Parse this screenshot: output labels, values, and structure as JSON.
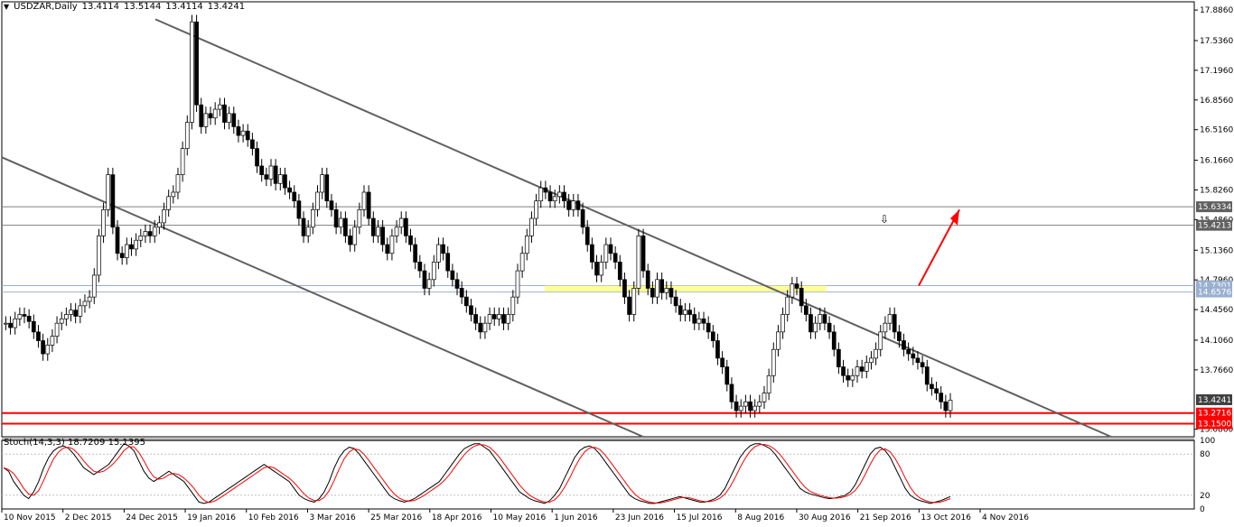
{
  "header": {
    "symbol": "USDZAR,Daily",
    "open": "13.4114",
    "high": "13.5144",
    "low": "13.4114",
    "close": "13.4241"
  },
  "stoch": {
    "label": "Stoch(14,3,3)",
    "main": "18.7209",
    "signal": "15.1395",
    "levels": [
      "100",
      "80",
      "20",
      "0"
    ]
  },
  "chart_data": {
    "type": "candlestick",
    "y_axis_ticks": [
      "17.8860",
      "17.5360",
      "17.1960",
      "16.8560",
      "16.5160",
      "16.1660",
      "15.8260",
      "15.4860",
      "15.1360",
      "14.7960",
      "14.4560",
      "14.1060",
      "13.7660",
      "13.4241",
      "13.0860"
    ],
    "ylim": [
      13.0,
      17.98
    ],
    "x_axis_ticks": [
      "10 Nov 2015",
      "2 Dec 2015",
      "24 Dec 2015",
      "19 Jan 2016",
      "10 Feb 2016",
      "3 Mar 2016",
      "25 Mar 2016",
      "18 Apr 2016",
      "10 May 2016",
      "1 Jun 2016",
      "23 Jun 2016",
      "15 Jul 2016",
      "8 Aug 2016",
      "30 Aug 2016",
      "21 Sep 2016",
      "13 Oct 2016",
      "4 Nov 2016"
    ],
    "horizontal_lines": [
      {
        "label": "15.6334",
        "value": 15.6334,
        "color": "#808080"
      },
      {
        "label": "15.4213",
        "value": 15.4213,
        "color": "#808080"
      },
      {
        "label": "14.7301",
        "value": 14.7301,
        "color": "#9ab0d0"
      },
      {
        "label": "14.6576",
        "value": 14.6576,
        "color": "#9ab0d0"
      },
      {
        "label": "13.2716",
        "value": 13.2716,
        "color": "#ff0000"
      },
      {
        "label": "13.1500",
        "value": 13.15,
        "color": "#ff0000"
      }
    ],
    "current_price": "13.4241",
    "series": [
      {
        "values": [
          14.3,
          14.25,
          14.35,
          14.4,
          14.38,
          14.32,
          14.2,
          14.1,
          13.95,
          14.05,
          14.15,
          14.3,
          14.35,
          14.4,
          14.45,
          14.38,
          14.5,
          14.55,
          14.6,
          14.85,
          15.3,
          15.6,
          16.0,
          15.4,
          15.1,
          15.05,
          15.2,
          15.15,
          15.25,
          15.3,
          15.35,
          15.3,
          15.4,
          15.45,
          15.6,
          15.75,
          15.8,
          16.0,
          16.3,
          16.6,
          17.75,
          16.8,
          16.55,
          16.7,
          16.65,
          16.75,
          16.8,
          16.6,
          16.7,
          16.55,
          16.45,
          16.5,
          16.4,
          16.3,
          16.1,
          16.0,
          15.95,
          16.1,
          15.9,
          16.0,
          15.85,
          15.8,
          15.7,
          15.5,
          15.3,
          15.4,
          15.6,
          15.8,
          16.0,
          15.7,
          15.6,
          15.4,
          15.5,
          15.3,
          15.2,
          15.4,
          15.6,
          15.8,
          15.5,
          15.3,
          15.4,
          15.2,
          15.1,
          15.3,
          15.4,
          15.5,
          15.3,
          15.2,
          15.0,
          14.9,
          14.7,
          14.8,
          15.0,
          15.2,
          15.1,
          14.9,
          14.8,
          14.7,
          14.6,
          14.5,
          14.4,
          14.3,
          14.2,
          14.3,
          14.4,
          14.35,
          14.4,
          14.3,
          14.4,
          14.6,
          14.9,
          15.1,
          15.3,
          15.5,
          15.7,
          15.85,
          15.8,
          15.7,
          15.75,
          15.8,
          15.7,
          15.6,
          15.7,
          15.6,
          15.4,
          15.2,
          15.0,
          14.85,
          15.0,
          15.2,
          15.1,
          15.0,
          14.8,
          14.6,
          14.4,
          14.7,
          15.3,
          14.9,
          14.7,
          14.6,
          14.8,
          14.65,
          14.7,
          14.6,
          14.5,
          14.4,
          14.45,
          14.4,
          14.3,
          14.35,
          14.3,
          14.2,
          14.1,
          13.9,
          13.8,
          13.6,
          13.4,
          13.3,
          13.35,
          13.4,
          13.3,
          13.35,
          13.4,
          13.5,
          13.7,
          14.0,
          14.2,
          14.4,
          14.6,
          14.75,
          14.7,
          14.5,
          14.4,
          14.2,
          14.3,
          14.4,
          14.3,
          14.2,
          14.0,
          13.8,
          13.7,
          13.65,
          13.7,
          13.8,
          13.75,
          13.85,
          13.9,
          14.0,
          14.2,
          14.3,
          14.4,
          14.2,
          14.1,
          14.0,
          13.95,
          13.9,
          13.85,
          13.8,
          13.6,
          13.55,
          13.5,
          13.4,
          13.3,
          13.42
        ]
      }
    ],
    "stoch_k": [
      60,
      55,
      40,
      30,
      20,
      15,
      25,
      40,
      60,
      75,
      85,
      90,
      92,
      88,
      80,
      70,
      60,
      55,
      50,
      55,
      60,
      65,
      75,
      85,
      95,
      92,
      85,
      70,
      55,
      45,
      40,
      45,
      50,
      55,
      50,
      45,
      40,
      30,
      20,
      10,
      8,
      10,
      15,
      20,
      25,
      30,
      35,
      40,
      45,
      50,
      55,
      60,
      65,
      60,
      55,
      50,
      45,
      40,
      30,
      20,
      15,
      12,
      10,
      15,
      25,
      40,
      60,
      75,
      85,
      90,
      88,
      80,
      70,
      60,
      50,
      40,
      30,
      20,
      15,
      12,
      10,
      12,
      15,
      20,
      25,
      30,
      35,
      40,
      50,
      60,
      70,
      80,
      88,
      92,
      95,
      95,
      90,
      85,
      75,
      65,
      55,
      45,
      35,
      25,
      20,
      15,
      12,
      10,
      8,
      12,
      20,
      30,
      45,
      60,
      75,
      85,
      90,
      92,
      88,
      80,
      70,
      60,
      50,
      40,
      30,
      20,
      15,
      12,
      10,
      8,
      8,
      10,
      12,
      14,
      16,
      18,
      16,
      14,
      12,
      10,
      10,
      12,
      15,
      20,
      30,
      45,
      60,
      75,
      85,
      92,
      95,
      95,
      92,
      88,
      80,
      70,
      60,
      50,
      40,
      30,
      25,
      22,
      20,
      18,
      16,
      15,
      16,
      18,
      20,
      25,
      35,
      50,
      65,
      80,
      88,
      90,
      85,
      75,
      60,
      45,
      30,
      20,
      15,
      12,
      10,
      8,
      10,
      12,
      15,
      18
    ]
  }
}
